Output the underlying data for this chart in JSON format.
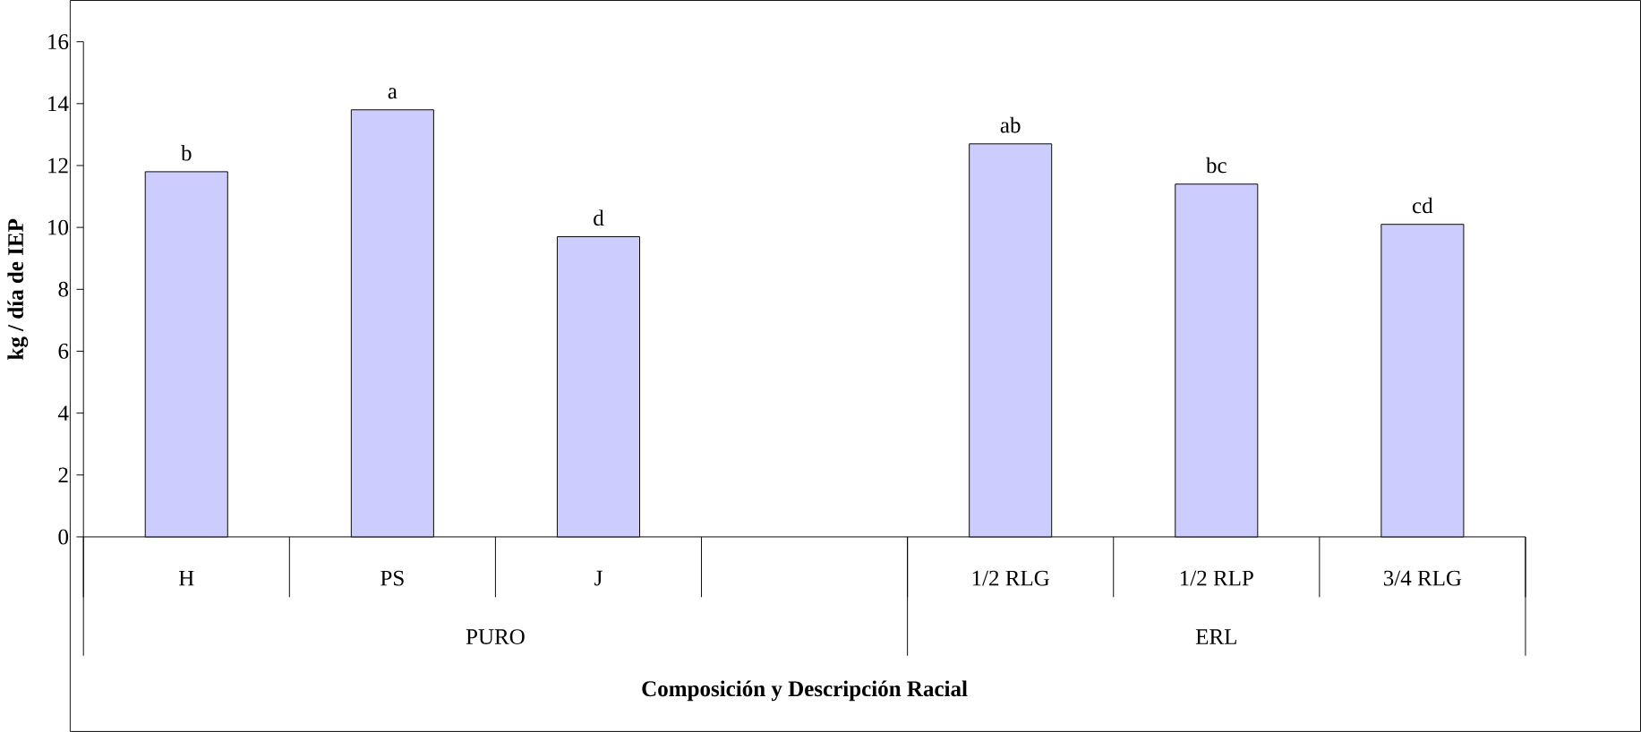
{
  "chart_data": {
    "type": "bar",
    "xlabel": "Composición y Descripción Racial",
    "ylabel": "kg / día de IEP",
    "categories": [
      "H",
      "PS",
      "J",
      null,
      "1/2 RLG",
      "1/2 RLP",
      "3/4 RLG"
    ],
    "values": [
      11.8,
      13.8,
      9.7,
      null,
      12.7,
      11.4,
      10.1
    ],
    "value_labels": [
      "b",
      "a",
      "d",
      null,
      "ab",
      "bc",
      "cd"
    ],
    "color": "#ccccff",
    "annotations": [
      "PURO",
      "ERL"
    ],
    "ylim": [
      0,
      16
    ],
    "yticks": [
      0,
      2,
      4,
      6,
      8,
      10,
      12,
      14,
      16
    ],
    "grid": false
  }
}
